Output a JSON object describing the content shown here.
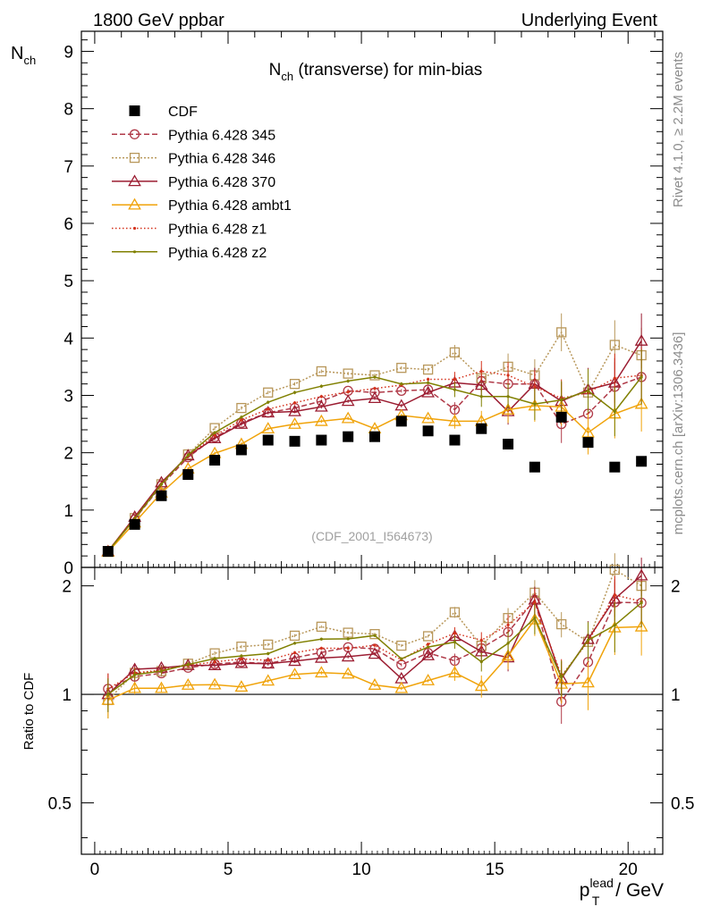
{
  "chart_data": {
    "type": "scatter",
    "header_left": "1800 GeV ppbar",
    "header_right": "Underlying Event",
    "title_main": "N",
    "title_sub": "ch",
    "title_rest": " (transverse) for min-bias",
    "ylabel_main": "N",
    "ylabel_sub": "ch",
    "ratio_ylabel": "Ratio to CDF",
    "xlabel_p": "p",
    "xlabel_sup": "lead",
    "xlabel_sub": "T",
    "xlabel_rest": " / GeV",
    "watermark": "(CDF_2001_I564673)",
    "side_label_top": "Rivet 4.1.0, ≥ 2.2M events",
    "side_label_bottom": "mcplots.cern.ch [arXiv:1306.3436]",
    "xlim": [
      -0.5,
      21.3
    ],
    "ylim": [
      0,
      9.35
    ],
    "ratio_ylim": [
      0.36,
      2.25
    ],
    "x_ticks": [
      "0",
      "5",
      "10",
      "15",
      "20"
    ],
    "y_ticks": [
      "0",
      "1",
      "2",
      "3",
      "4",
      "5",
      "6",
      "7",
      "8",
      "9"
    ],
    "ratio_ticks_left": [
      "0.5",
      "1",
      "2"
    ],
    "ratio_ticks_right": [
      "0.5",
      "1",
      "2"
    ],
    "x": [
      0.5,
      1.5,
      2.5,
      3.5,
      4.5,
      5.5,
      6.5,
      7.5,
      8.5,
      9.5,
      10.5,
      11.5,
      12.5,
      13.5,
      14.5,
      15.5,
      16.5,
      17.5,
      18.5,
      19.5,
      20.5
    ],
    "data": {
      "name": "CDF",
      "values": [
        0.28,
        0.75,
        1.25,
        1.62,
        1.87,
        2.05,
        2.22,
        2.2,
        2.22,
        2.28,
        2.28,
        2.55,
        2.38,
        2.22,
        2.42,
        2.15,
        1.75,
        2.62,
        2.18,
        1.75,
        1.85
      ]
    },
    "series": [
      {
        "name": "Pythia 6.428 345",
        "color": "#b03a48",
        "dash": "6,3",
        "marker": "circle",
        "values": [
          0.29,
          0.84,
          1.43,
          1.92,
          2.27,
          2.52,
          2.7,
          2.78,
          2.9,
          3.08,
          3.05,
          3.08,
          3.1,
          2.75,
          3.25,
          3.2,
          3.2,
          2.5,
          2.68,
          3.15,
          3.32
        ]
      },
      {
        "name": "Pythia 6.428 346",
        "color": "#b8975a",
        "dash": "2,2",
        "marker": "square",
        "values": [
          0.27,
          0.86,
          1.45,
          1.97,
          2.43,
          2.78,
          3.05,
          3.2,
          3.42,
          3.38,
          3.35,
          3.48,
          3.45,
          3.75,
          3.3,
          3.5,
          3.35,
          4.1,
          3.05,
          3.88,
          3.7
        ]
      },
      {
        "name": "Pythia 6.428 370",
        "color": "#9b1c31",
        "dash": "",
        "marker": "triangle",
        "values": [
          0.28,
          0.88,
          1.48,
          1.95,
          2.25,
          2.5,
          2.7,
          2.72,
          2.8,
          2.9,
          2.95,
          2.82,
          3.05,
          3.22,
          3.18,
          2.72,
          3.2,
          2.9,
          3.1,
          3.22,
          3.95
        ]
      },
      {
        "name": "Pythia 6.428 ambt1",
        "color": "#f0a30a",
        "dash": "",
        "marker": "triangle",
        "values": [
          0.27,
          0.78,
          1.3,
          1.72,
          1.99,
          2.15,
          2.42,
          2.5,
          2.55,
          2.6,
          2.42,
          2.65,
          2.6,
          2.55,
          2.55,
          2.75,
          2.82,
          2.8,
          2.35,
          2.68,
          2.85
        ]
      },
      {
        "name": "Pythia 6.428 z1",
        "color": "#d4321c",
        "dash": "1.5,2.5",
        "marker": "dot",
        "values": [
          0.29,
          0.86,
          1.46,
          1.95,
          2.3,
          2.57,
          2.76,
          2.87,
          2.98,
          3.06,
          3.12,
          3.18,
          3.28,
          3.28,
          3.42,
          3.35,
          3.15,
          2.95,
          3.05,
          3.3,
          3.35
        ]
      },
      {
        "name": "Pythia 6.428 z2",
        "color": "#808000",
        "dash": "",
        "marker": "dot",
        "values": [
          0.28,
          0.85,
          1.45,
          1.96,
          2.35,
          2.62,
          2.88,
          3.05,
          3.16,
          3.25,
          3.32,
          3.2,
          3.22,
          3.1,
          2.98,
          2.98,
          2.85,
          2.92,
          3.08,
          2.72,
          3.32
        ]
      }
    ]
  }
}
